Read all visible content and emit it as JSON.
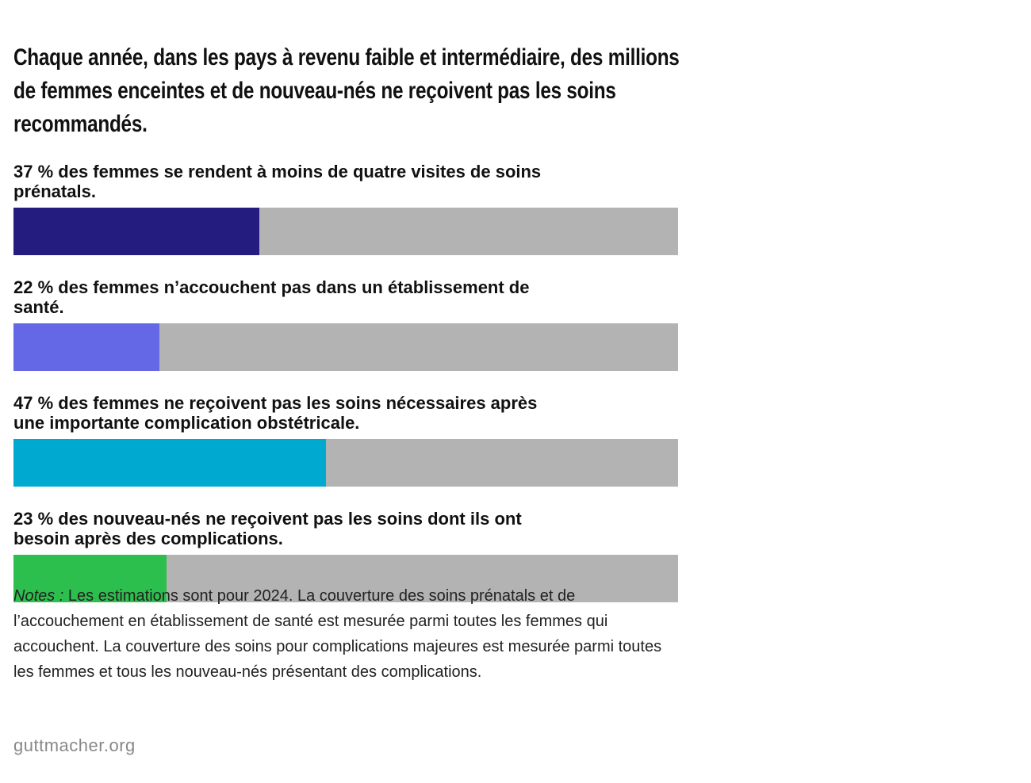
{
  "chart_data": {
    "type": "bar",
    "orientation": "horizontal",
    "title": "Chaque année, dans les pays à revenu faible et intermédiaire, des millions de femmes enceintes et de nouveau-nés ne reçoivent pas les soins recommandés.",
    "categories": [
      "des femmes se rendent à moins de quatre visites de soins prénatals.",
      "des femmes n’accouchent pas dans un établissement de santé.",
      "des femmes ne reçoivent pas les soins nécessaires après une importante complication obstétricale.",
      "des nouveau-nés ne reçoivent pas les soins dont ils ont besoin après des complications."
    ],
    "values": [
      37,
      22,
      47,
      23
    ],
    "value_labels": [
      "37 %",
      "22 %",
      "47 %",
      "23 %"
    ],
    "colors": [
      "#241c7e",
      "#6468e6",
      "#00a9d0",
      "#2dbf4e"
    ],
    "track_color": "#b3b3b3",
    "xlim": [
      0,
      100
    ],
    "notes_label": "Notes :",
    "notes": "Les estimations sont pour 2024. La couverture des soins prénatals et de l’accouchement en établissement de santé est mesurée parmi toutes les femmes qui accouchent. La couverture des soins pour complications majeures est mesurée parmi toutes les femmes et tous les nouveau-nés présentant des complications.",
    "source": "guttmacher.org"
  }
}
